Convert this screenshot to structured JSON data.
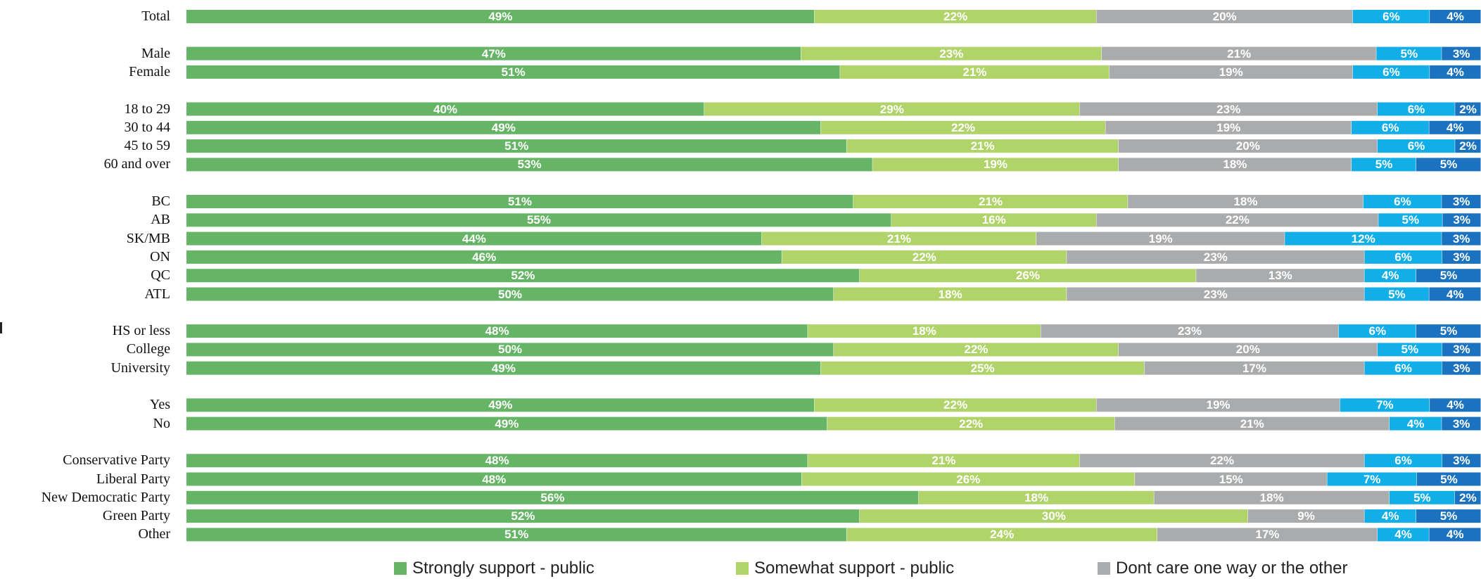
{
  "chart_data": {
    "type": "bar",
    "orientation": "horizontal",
    "stacked": true,
    "normalized": true,
    "grid": false,
    "legend_position": "bottom",
    "categories": [
      "Total",
      "Male",
      "Female",
      "18 to 29",
      "30 to 44",
      "45 to 59",
      "60 and over",
      "BC",
      "AB",
      "SK/MB",
      "ON",
      "QC",
      "ATL",
      "HS or less",
      "College",
      "University",
      "Yes",
      "No",
      "Conservative Party",
      "Liberal Party",
      "New Democratic Party",
      "Green Party",
      "Other"
    ],
    "groups": [
      [
        "Total"
      ],
      [
        "Male",
        "Female"
      ],
      [
        "18 to 29",
        "30 to 44",
        "45 to 59",
        "60 and over"
      ],
      [
        "BC",
        "AB",
        "SK/MB",
        "ON",
        "QC",
        "ATL"
      ],
      [
        "HS or less",
        "College",
        "University"
      ],
      [
        "Yes",
        "No"
      ],
      [
        "Conservative Party",
        "Liberal Party",
        "New Democratic Party",
        "Green Party",
        "Other"
      ]
    ],
    "series": [
      {
        "name": "Strongly support - public",
        "color": "#66b566",
        "values": [
          49,
          47,
          51,
          40,
          49,
          51,
          53,
          51,
          55,
          44,
          46,
          52,
          50,
          48,
          50,
          49,
          49,
          49,
          48,
          48,
          56,
          52,
          51
        ]
      },
      {
        "name": "Somewhat support - public",
        "color": "#b0d36a",
        "values": [
          22,
          23,
          21,
          29,
          22,
          21,
          19,
          21,
          16,
          21,
          22,
          26,
          18,
          18,
          22,
          25,
          22,
          22,
          21,
          26,
          18,
          30,
          24
        ]
      },
      {
        "name": "Dont care one way or the other",
        "color": "#a9abad",
        "values": [
          20,
          21,
          19,
          23,
          19,
          20,
          18,
          18,
          22,
          19,
          23,
          13,
          23,
          23,
          20,
          17,
          19,
          21,
          22,
          15,
          18,
          9,
          17
        ]
      },
      {
        "color": "#12aee8",
        "values": [
          6,
          5,
          6,
          6,
          6,
          6,
          5,
          6,
          5,
          12,
          6,
          4,
          5,
          6,
          5,
          6,
          7,
          4,
          6,
          7,
          5,
          4,
          4
        ]
      },
      {
        "color": "#1b72be",
        "values": [
          4,
          3,
          4,
          2,
          4,
          2,
          5,
          3,
          3,
          3,
          3,
          5,
          4,
          5,
          3,
          3,
          4,
          3,
          3,
          5,
          2,
          5,
          4
        ]
      }
    ],
    "xlim": [
      0,
      100
    ],
    "unit": "%"
  }
}
